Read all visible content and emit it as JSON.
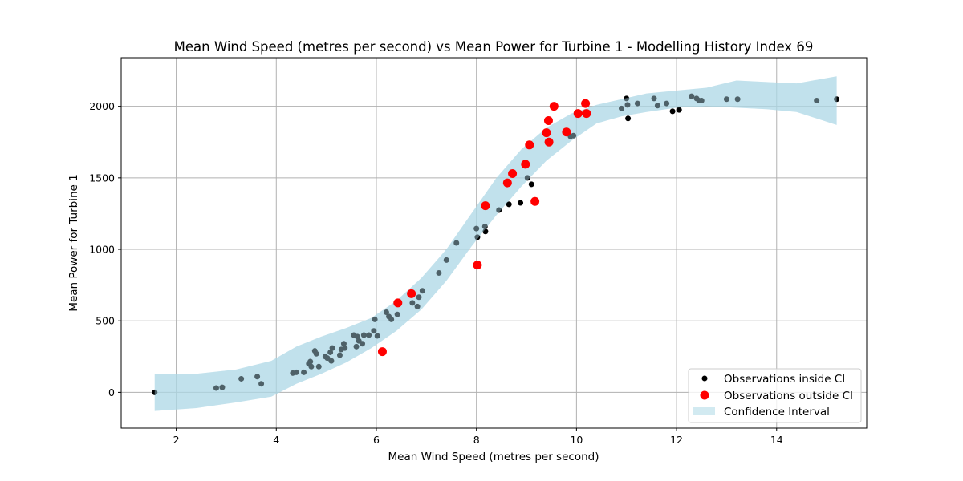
{
  "chart_data": {
    "type": "scatter",
    "title": "Mean Wind Speed (metres per second) vs Mean Power for Turbine 1 - Modelling History Index 69",
    "xlabel": "Mean Wind Speed (metres per second)",
    "ylabel": "Mean Power for Turbine 1",
    "xlim": [
      0.9,
      15.8
    ],
    "ylim": [
      -250,
      2340
    ],
    "x_ticks": [
      2,
      4,
      6,
      8,
      10,
      12,
      14
    ],
    "y_ticks": [
      0,
      500,
      1000,
      1500,
      2000
    ],
    "grid": true,
    "legend_position": "bottom-right",
    "colors": {
      "inside": "#000000",
      "outside": "#ff0000",
      "confidence_fill": "#add8e6",
      "grid": "#b0b0b0"
    },
    "confidence_interval": {
      "name": "Confidence Interval",
      "x": [
        1.57,
        2.4,
        3.2,
        3.9,
        4.4,
        4.9,
        5.4,
        5.9,
        6.4,
        6.9,
        7.4,
        7.9,
        8.4,
        8.9,
        9.4,
        9.9,
        10.4,
        10.9,
        11.4,
        12.0,
        12.6,
        13.2,
        13.8,
        14.4,
        15.2
      ],
      "lower": [
        -130,
        -110,
        -70,
        -30,
        60,
        130,
        210,
        310,
        430,
        580,
        780,
        1020,
        1240,
        1440,
        1620,
        1760,
        1880,
        1930,
        1960,
        1990,
        2000,
        1990,
        1980,
        1960,
        1870
      ],
      "upper": [
        130,
        130,
        160,
        220,
        320,
        390,
        450,
        520,
        640,
        800,
        1000,
        1250,
        1500,
        1700,
        1850,
        1950,
        2010,
        2050,
        2090,
        2110,
        2130,
        2180,
        2170,
        2160,
        2210
      ]
    },
    "series": [
      {
        "name": "Observations inside CI",
        "points": [
          [
            1.57,
            0
          ],
          [
            2.8,
            30
          ],
          [
            2.92,
            35
          ],
          [
            3.3,
            95
          ],
          [
            3.62,
            110
          ],
          [
            3.7,
            60
          ],
          [
            4.33,
            135
          ],
          [
            4.4,
            140
          ],
          [
            4.55,
            140
          ],
          [
            4.65,
            200
          ],
          [
            4.68,
            215
          ],
          [
            4.7,
            180
          ],
          [
            4.77,
            290
          ],
          [
            4.8,
            270
          ],
          [
            4.85,
            180
          ],
          [
            4.98,
            250
          ],
          [
            5.02,
            240
          ],
          [
            5.08,
            280
          ],
          [
            5.1,
            220
          ],
          [
            5.12,
            310
          ],
          [
            5.27,
            260
          ],
          [
            5.3,
            300
          ],
          [
            5.35,
            340
          ],
          [
            5.37,
            310
          ],
          [
            5.55,
            400
          ],
          [
            5.6,
            320
          ],
          [
            5.62,
            390
          ],
          [
            5.65,
            360
          ],
          [
            5.72,
            340
          ],
          [
            5.75,
            400
          ],
          [
            5.85,
            400
          ],
          [
            5.95,
            430
          ],
          [
            5.97,
            510
          ],
          [
            6.02,
            395
          ],
          [
            6.2,
            560
          ],
          [
            6.25,
            530
          ],
          [
            6.3,
            510
          ],
          [
            6.42,
            545
          ],
          [
            6.72,
            625
          ],
          [
            6.82,
            600
          ],
          [
            6.85,
            665
          ],
          [
            6.92,
            710
          ],
          [
            7.25,
            835
          ],
          [
            7.4,
            925
          ],
          [
            7.6,
            1045
          ],
          [
            8.0,
            1145
          ],
          [
            8.02,
            1085
          ],
          [
            8.17,
            1160
          ],
          [
            8.18,
            1125
          ],
          [
            8.45,
            1275
          ],
          [
            8.65,
            1315
          ],
          [
            8.88,
            1325
          ],
          [
            9.02,
            1500
          ],
          [
            9.1,
            1455
          ],
          [
            9.45,
            1755
          ],
          [
            9.82,
            1820
          ],
          [
            9.88,
            1790
          ],
          [
            9.94,
            1795
          ],
          [
            10.9,
            1985
          ],
          [
            11.0,
            2055
          ],
          [
            11.02,
            2010
          ],
          [
            11.03,
            1915
          ],
          [
            11.22,
            2020
          ],
          [
            11.55,
            2055
          ],
          [
            11.62,
            2005
          ],
          [
            11.8,
            2020
          ],
          [
            11.92,
            1965
          ],
          [
            12.05,
            1975
          ],
          [
            12.3,
            2070
          ],
          [
            12.4,
            2055
          ],
          [
            12.45,
            2040
          ],
          [
            12.5,
            2040
          ],
          [
            13.0,
            2050
          ],
          [
            13.22,
            2050
          ],
          [
            14.8,
            2040
          ],
          [
            15.2,
            2050
          ]
        ]
      },
      {
        "name": "Observations outside CI",
        "points": [
          [
            6.12,
            285
          ],
          [
            6.43,
            625
          ],
          [
            6.7,
            690
          ],
          [
            8.02,
            890
          ],
          [
            8.18,
            1305
          ],
          [
            8.62,
            1465
          ],
          [
            8.72,
            1530
          ],
          [
            8.98,
            1595
          ],
          [
            9.06,
            1730
          ],
          [
            9.17,
            1335
          ],
          [
            9.4,
            1815
          ],
          [
            9.44,
            1900
          ],
          [
            9.45,
            1750
          ],
          [
            9.55,
            2000
          ],
          [
            9.8,
            1820
          ],
          [
            10.03,
            1950
          ],
          [
            10.18,
            2020
          ],
          [
            10.2,
            1950
          ]
        ]
      }
    ]
  }
}
